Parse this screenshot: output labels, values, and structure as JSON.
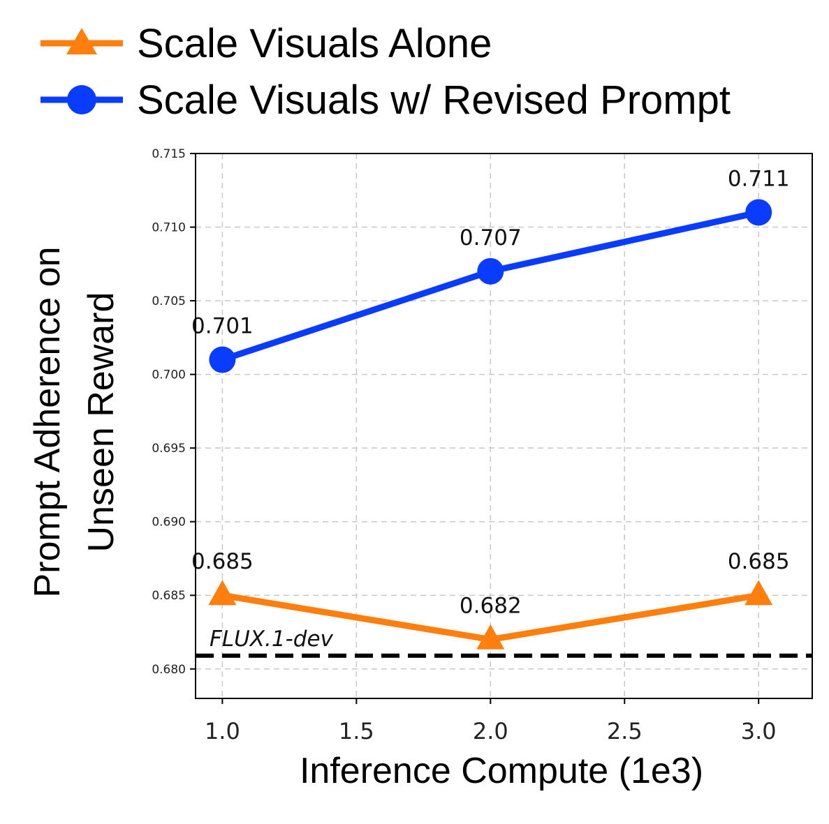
{
  "chart_data": {
    "type": "line",
    "title": "",
    "xlabel": "Inference Compute (1e3)",
    "ylabel_lines": [
      "Prompt Adherence on",
      "Unseen Reward"
    ],
    "x": [
      1.0,
      2.0,
      3.0
    ],
    "xlim": [
      0.9,
      3.2
    ],
    "ylim": [
      0.678,
      0.715
    ],
    "x_ticks": [
      "1.0",
      "1.5",
      "2.0",
      "2.5",
      "3.0"
    ],
    "x_tick_values": [
      1.0,
      1.5,
      2.0,
      2.5,
      3.0
    ],
    "y_ticks": [
      "0.680",
      "0.685",
      "0.690",
      "0.695",
      "0.700",
      "0.705",
      "0.710",
      "0.715"
    ],
    "y_tick_values": [
      0.68,
      0.685,
      0.69,
      0.695,
      0.7,
      0.705,
      0.71,
      0.715
    ],
    "grid": true,
    "legend_placement": "top-left, outside plot",
    "series": [
      {
        "name": "Scale Visuals Alone",
        "color": "#ff7f0e",
        "marker": "triangle",
        "values": [
          0.685,
          0.682,
          0.685
        ],
        "labels": [
          "0.685",
          "0.682",
          "0.685"
        ]
      },
      {
        "name": "Scale Visuals w/ Revised Prompt",
        "color": "#0a3cff",
        "marker": "circle",
        "values": [
          0.701,
          0.707,
          0.711
        ],
        "labels": [
          "0.701",
          "0.707",
          "0.711"
        ]
      }
    ],
    "reference_line": {
      "label": "FLUX.1-dev",
      "value": 0.6809,
      "color": "#000000",
      "style": "dashed"
    }
  }
}
